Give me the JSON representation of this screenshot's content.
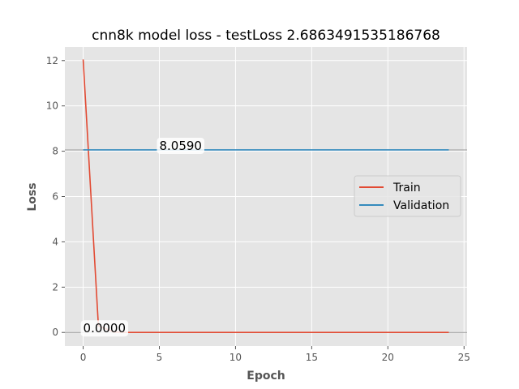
{
  "chart_data": {
    "type": "line",
    "title": "cnn8k model loss - testLoss 2.6863491535186768",
    "xlabel": "Epoch",
    "ylabel": "Loss",
    "xlim": [
      -1.2,
      25.2
    ],
    "ylim": [
      -0.6,
      12.6
    ],
    "xticks": [
      0,
      5,
      10,
      15,
      20,
      25
    ],
    "yticks": [
      0,
      2,
      4,
      6,
      8,
      10,
      12
    ],
    "grid": true,
    "legend_position": "center-right",
    "series": [
      {
        "name": "Train",
        "color": "#E24A33",
        "x": [
          0,
          1,
          2,
          3,
          4,
          5,
          6,
          7,
          8,
          9,
          10,
          11,
          12,
          13,
          14,
          15,
          16,
          17,
          18,
          19,
          20,
          21,
          22,
          23,
          24
        ],
        "y": [
          12.05,
          0.3,
          0.02,
          0,
          0,
          0,
          0,
          0,
          0,
          0,
          0,
          0,
          0,
          0,
          0,
          0,
          0,
          0,
          0,
          0,
          0,
          0,
          0,
          0,
          0
        ]
      },
      {
        "name": "Validation",
        "color": "#348ABD",
        "x": [
          0,
          1,
          2,
          3,
          4,
          5,
          6,
          7,
          8,
          9,
          10,
          11,
          12,
          13,
          14,
          15,
          16,
          17,
          18,
          19,
          20,
          21,
          22,
          23,
          24
        ],
        "y": [
          8.059,
          8.059,
          8.059,
          8.059,
          8.059,
          8.059,
          8.059,
          8.059,
          8.059,
          8.059,
          8.059,
          8.059,
          8.059,
          8.059,
          8.059,
          8.059,
          8.059,
          8.059,
          8.059,
          8.059,
          8.059,
          8.059,
          8.059,
          8.059,
          8.059
        ]
      }
    ],
    "hlines": [
      {
        "y": 8.059,
        "color": "#999999"
      },
      {
        "y": 0.0,
        "color": "#999999"
      }
    ],
    "annotations": [
      {
        "text": "8.0590",
        "x": 5,
        "y": 8.059
      },
      {
        "text": "0.0000",
        "x": 0,
        "y": 0.0
      }
    ]
  }
}
